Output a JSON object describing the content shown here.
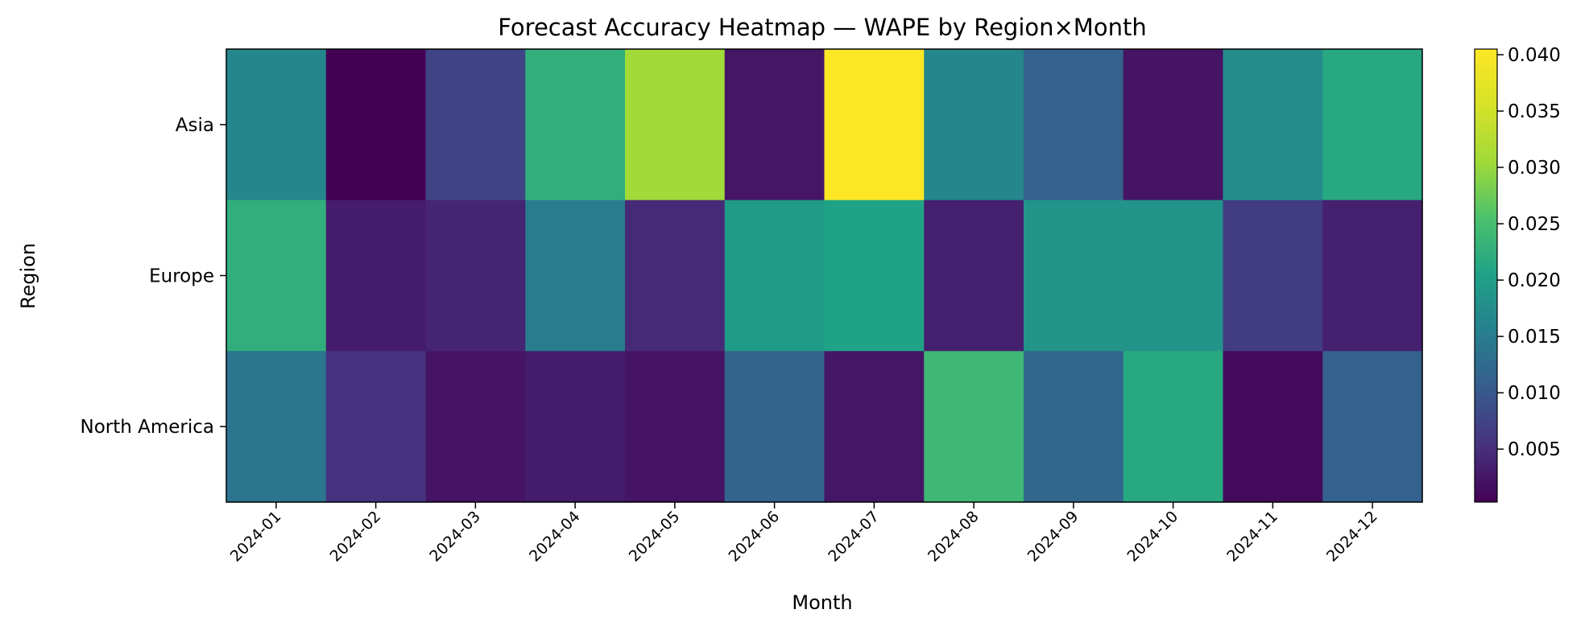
{
  "chart_data": {
    "type": "heatmap",
    "title": "Forecast Accuracy Heatmap — WAPE by Region×Month",
    "xlabel": "Month",
    "ylabel": "Region",
    "x": [
      "2024-01",
      "2024-02",
      "2024-03",
      "2024-04",
      "2024-05",
      "2024-06",
      "2024-07",
      "2024-08",
      "2024-09",
      "2024-10",
      "2024-11",
      "2024-12"
    ],
    "y": [
      "Asia",
      "Europe",
      "North America"
    ],
    "values": [
      [
        0.0165,
        0.0003,
        0.0075,
        0.0225,
        0.0305,
        0.0025,
        0.0405,
        0.0165,
        0.011,
        0.0022,
        0.0175,
        0.0215
      ],
      [
        0.0225,
        0.003,
        0.004,
        0.015,
        0.0045,
        0.0195,
        0.0205,
        0.0035,
        0.0185,
        0.0185,
        0.0065,
        0.0035
      ],
      [
        0.014,
        0.0055,
        0.0022,
        0.003,
        0.0022,
        0.0115,
        0.0025,
        0.024,
        0.012,
        0.0215,
        0.0012,
        0.011
      ]
    ],
    "colormap": "viridis",
    "colorbar": {
      "vmin": 0.0003,
      "vmax": 0.0405,
      "ticks": [
        0.005,
        0.01,
        0.015,
        0.02,
        0.025,
        0.03,
        0.035,
        0.04
      ],
      "tick_labels": [
        "0.005",
        "0.010",
        "0.015",
        "0.020",
        "0.025",
        "0.030",
        "0.035",
        "0.040"
      ]
    },
    "grid": false
  }
}
